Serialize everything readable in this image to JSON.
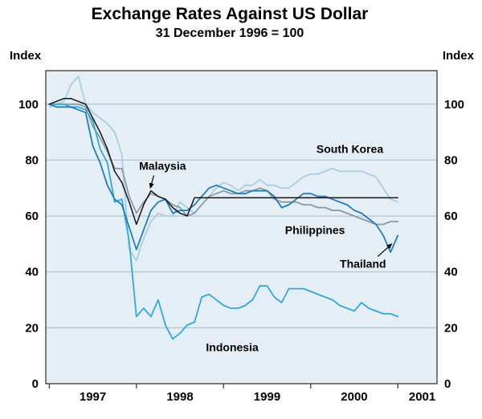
{
  "chart_data": {
    "type": "line",
    "title": "Exchange Rates Against US Dollar",
    "subtitle": "31 December 1996 = 100",
    "ylabel_left": "Index",
    "ylabel_right": "Index",
    "x_unit": "decimal_year",
    "xlim": [
      1996.96,
      2001.45
    ],
    "ylim": [
      0,
      112
    ],
    "y_ticks": [
      0,
      20,
      40,
      60,
      80,
      100
    ],
    "x_ticks": [
      1997,
      1998,
      1999,
      2000,
      2001
    ],
    "x_tick_labels": [
      "1997",
      "1998",
      "1999",
      "2000",
      "2001"
    ],
    "grid": "horizontal",
    "legend_position": "none",
    "plot_bg": "#e6eef5",
    "grid_color": "#a8bcca",
    "border_color": "#2b2b2b",
    "x": [
      1997.0,
      1997.083,
      1997.167,
      1997.25,
      1997.333,
      1997.417,
      1997.5,
      1997.583,
      1997.667,
      1997.75,
      1997.833,
      1997.917,
      1998.0,
      1998.083,
      1998.167,
      1998.25,
      1998.333,
      1998.417,
      1998.5,
      1998.583,
      1998.667,
      1998.75,
      1998.833,
      1998.917,
      1999.0,
      1999.083,
      1999.167,
      1999.25,
      1999.333,
      1999.417,
      1999.5,
      1999.583,
      1999.667,
      1999.75,
      1999.833,
      1999.917,
      2000.0,
      2000.083,
      2000.167,
      2000.25,
      2000.333,
      2000.417,
      2000.5,
      2000.583,
      2000.667,
      2000.75,
      2000.833,
      2000.917,
      2001.0
    ],
    "series": [
      {
        "name": "South Korea",
        "color": "#a9cee3",
        "width": 1.8,
        "values": [
          99,
          100,
          101,
          107,
          110,
          100,
          97,
          95,
          93,
          90,
          82,
          48,
          44,
          52,
          58,
          61,
          60,
          60,
          65,
          63,
          61,
          64,
          67,
          70,
          72,
          71,
          69,
          71,
          71,
          73,
          71,
          71,
          70,
          70,
          72,
          74,
          75,
          75,
          76,
          77,
          76,
          76,
          76,
          76,
          75,
          74,
          70,
          66,
          65
        ]
      },
      {
        "name": "Philippines",
        "color": "#8f99a2",
        "width": 1.8,
        "values": [
          100,
          100,
          100,
          100,
          100,
          99,
          92,
          88,
          83,
          77,
          77,
          67,
          61,
          65,
          68,
          67,
          66,
          64,
          63,
          60,
          61,
          64,
          67,
          68,
          69,
          68,
          68,
          69,
          69,
          70,
          69,
          66,
          65,
          65,
          65,
          64,
          64,
          63,
          63,
          62,
          62,
          61,
          60,
          59,
          58,
          57,
          57,
          58,
          58
        ]
      },
      {
        "name": "Indonesia",
        "color": "#2fa9e0",
        "width": 1.8,
        "values": [
          100,
          100,
          100,
          99,
          99,
          98,
          94,
          84,
          79,
          65,
          66,
          51,
          24,
          27,
          24,
          30,
          21,
          16,
          18,
          21,
          22,
          31,
          32,
          30,
          28,
          27,
          27,
          28,
          30,
          35,
          35,
          31,
          29,
          34,
          34,
          34,
          33,
          32,
          31,
          30,
          28,
          27,
          26,
          29,
          27,
          26,
          25,
          25,
          24
        ]
      },
      {
        "name": "Thailand",
        "color": "#1d7fbd",
        "width": 1.8,
        "values": [
          100,
          99,
          99,
          99,
          98,
          97,
          85,
          79,
          71,
          66,
          64,
          56,
          48,
          55,
          62,
          65,
          66,
          61,
          62,
          62,
          64,
          67,
          70,
          71,
          70,
          69,
          68,
          68,
          69,
          69,
          69,
          67,
          63,
          64,
          66,
          68,
          68,
          67,
          67,
          66,
          65,
          64,
          62,
          61,
          59,
          57,
          53,
          47,
          53
        ]
      },
      {
        "name": "Malaysia",
        "color": "#141414",
        "width": 1.5,
        "values": [
          100,
          101,
          102,
          102,
          101,
          100,
          95,
          90,
          84,
          76,
          72,
          65,
          57,
          64,
          69,
          67,
          66,
          63,
          61,
          60,
          66.5,
          66.5,
          66.5,
          66.5,
          66.5,
          66.5,
          66.5,
          66.5,
          66.5,
          66.5,
          66.5,
          66.5,
          66.5,
          66.5,
          66.5,
          66.5,
          66.5,
          66.5,
          66.5,
          66.5,
          66.5,
          66.5,
          66.5,
          66.5,
          66.5,
          66.5,
          66.5,
          66.5,
          66.5
        ]
      }
    ],
    "annotations": [
      {
        "label": "Malaysia",
        "x": 1998.3,
        "y": 78,
        "arrow": {
          "x1": 1998.2,
          "y1": 74.5,
          "x2": 1998.16,
          "y2": 70
        }
      },
      {
        "label": "South Korea",
        "x": 2000.45,
        "y": 84,
        "arrow": null
      },
      {
        "label": "Philippines",
        "x": 2000.05,
        "y": 55,
        "arrow": null
      },
      {
        "label": "Thailand",
        "x": 2000.6,
        "y": 43,
        "arrow": {
          "x1": 2000.77,
          "y1": 45.5,
          "x2": 2000.93,
          "y2": 50
        }
      },
      {
        "label": "Indonesia",
        "x": 1999.1,
        "y": 13,
        "arrow": null
      }
    ]
  }
}
